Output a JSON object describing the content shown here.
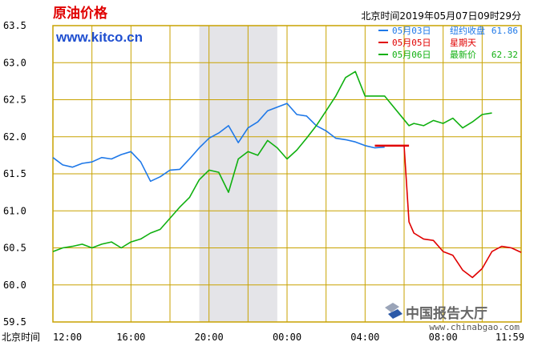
{
  "header": {
    "title": "原油价格",
    "site": "www.kitco.cn",
    "timestamp": "北京时间2019年05月07日09时29分"
  },
  "legend": [
    {
      "date": "05月03日",
      "label": "纽约收盘",
      "value": "61.86",
      "color": "#1e78e8"
    },
    {
      "date": "05月05日",
      "label": "星期天",
      "value": "",
      "color": "#e00000"
    },
    {
      "date": "05月06日",
      "label": "最新价",
      "value": "62.32",
      "color": "#10b010"
    }
  ],
  "watermark": {
    "name": "中国报告大厅",
    "url": "www.chinabgao.com"
  },
  "colors": {
    "grid": "#c8a200",
    "shade": "#e4e4e8"
  },
  "chart_data": {
    "type": "line",
    "title": "原油价格",
    "xlabel": "北京时间",
    "x_tick_labels": [
      "12:00",
      "16:00",
      "20:00",
      "00:00",
      "04:00",
      "08:00",
      "11:59"
    ],
    "x_hours": [
      0,
      4,
      8,
      12,
      16,
      20,
      24
    ],
    "xlim_hours": [
      0,
      24
    ],
    "y_ticks": [
      59.5,
      60.0,
      60.5,
      61.0,
      61.5,
      62.0,
      62.5,
      63.0,
      63.5
    ],
    "ylim": [
      59.5,
      63.5
    ],
    "grid": true,
    "shaded_range_hours": [
      7.5,
      11.5
    ],
    "series": [
      {
        "name": "05月03日",
        "color": "#1e78e8",
        "x": [
          0,
          0.5,
          1,
          1.5,
          2,
          2.5,
          3,
          3.5,
          4,
          4.5,
          5,
          5.5,
          6,
          6.5,
          7,
          7.5,
          8,
          8.5,
          9,
          9.5,
          10,
          10.5,
          11,
          11.5,
          12,
          12.5,
          13,
          13.5,
          14,
          14.5,
          15,
          15.5,
          16,
          16.5,
          17
        ],
        "y": [
          61.72,
          61.62,
          61.59,
          61.64,
          61.66,
          61.72,
          61.7,
          61.76,
          61.8,
          61.66,
          61.4,
          61.46,
          61.55,
          61.56,
          61.7,
          61.85,
          61.98,
          62.05,
          62.15,
          61.92,
          62.12,
          62.2,
          62.35,
          62.4,
          62.45,
          62.3,
          62.28,
          62.15,
          62.08,
          61.98,
          61.96,
          61.93,
          61.88,
          61.85,
          61.86
        ]
      },
      {
        "name": "05月05日",
        "color": "#e00000",
        "x": [
          16.5,
          17,
          17.5,
          18,
          18.25,
          18.5,
          19,
          19.5,
          20,
          20.5,
          21,
          21.5,
          22,
          22.5,
          23,
          23.5,
          24
        ],
        "y": [
          61.88,
          61.88,
          61.88,
          61.88,
          60.85,
          60.7,
          60.62,
          60.6,
          60.45,
          60.4,
          60.2,
          60.1,
          60.22,
          60.45,
          60.52,
          60.5,
          60.44
        ]
      },
      {
        "name": "05月06日",
        "color": "#10b010",
        "x": [
          0,
          0.5,
          1,
          1.5,
          2,
          2.5,
          3,
          3.5,
          4,
          4.5,
          5,
          5.5,
          6,
          6.5,
          7,
          7.5,
          8,
          8.5,
          9,
          9.5,
          10,
          10.5,
          11,
          11.5,
          12,
          12.5,
          13,
          13.5,
          14,
          14.5,
          15,
          15.5,
          16,
          16.5,
          17,
          18.25,
          18.5,
          19,
          19.5,
          20,
          20.5,
          21,
          21.5,
          22,
          22.5
        ],
        "y": [
          60.45,
          60.5,
          60.52,
          60.55,
          60.5,
          60.55,
          60.58,
          60.5,
          60.58,
          60.62,
          60.7,
          60.75,
          60.9,
          61.05,
          61.18,
          61.42,
          61.55,
          61.52,
          61.25,
          61.7,
          61.8,
          61.75,
          61.95,
          61.85,
          61.7,
          61.82,
          61.98,
          62.15,
          62.35,
          62.55,
          62.8,
          62.88,
          62.55,
          62.55,
          62.55,
          62.15,
          62.18,
          62.15,
          62.22,
          62.18,
          62.25,
          62.12,
          62.2,
          62.3,
          62.32
        ]
      }
    ]
  }
}
